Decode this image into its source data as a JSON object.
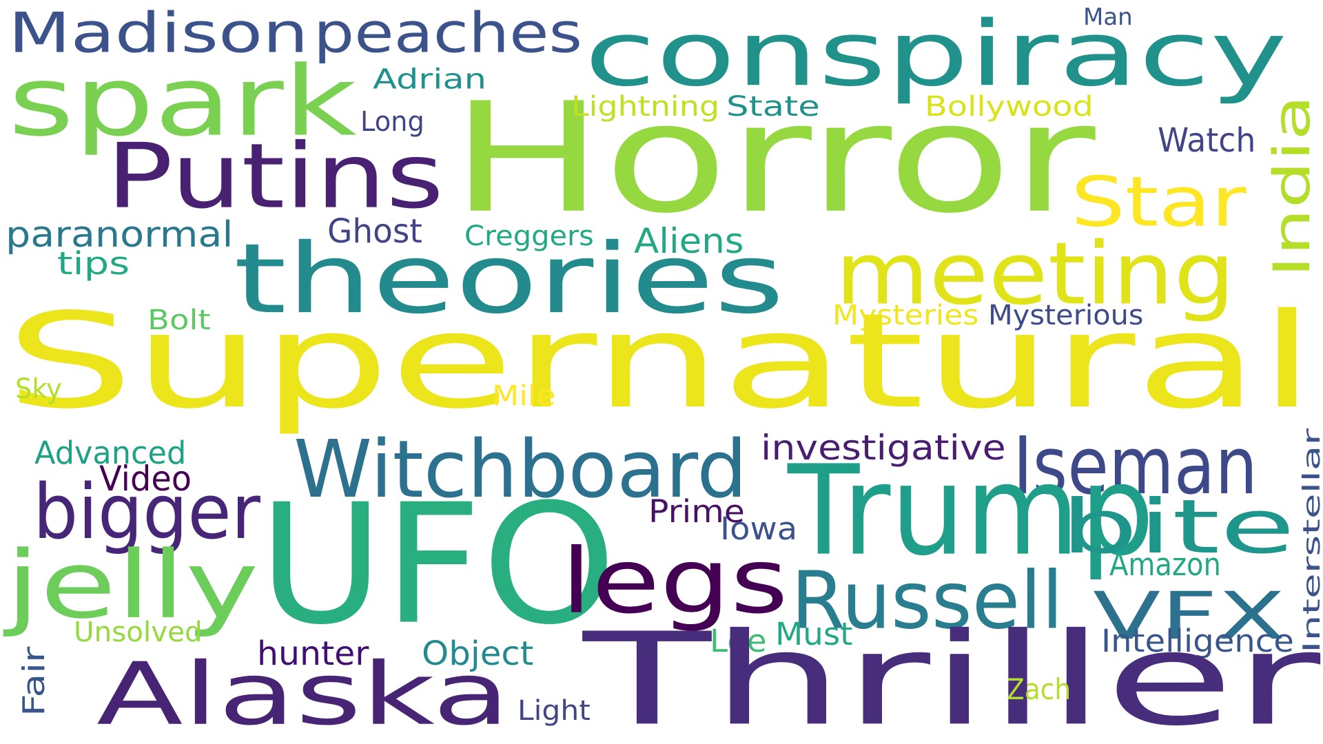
{
  "words": [
    {
      "text": "Madison",
      "color": "#3b528b",
      "rot": 0
    },
    {
      "text": "peaches",
      "color": "#3b528b",
      "rot": 0
    },
    {
      "text": "conspiracy",
      "color": "#21918c",
      "rot": 0
    },
    {
      "text": "Man",
      "color": "#3b528b",
      "rot": 0
    },
    {
      "text": "spark",
      "color": "#7ad151",
      "rot": 0
    },
    {
      "text": "Adrian",
      "color": "#21918c",
      "rot": 0
    },
    {
      "text": "Horror",
      "color": "#95d840",
      "rot": 0
    },
    {
      "text": "Lightning",
      "color": "#c2df23",
      "rot": 0
    },
    {
      "text": "State",
      "color": "#21918c",
      "rot": 0
    },
    {
      "text": "Bollywood",
      "color": "#dae319",
      "rot": 0
    },
    {
      "text": "Long",
      "color": "#414487",
      "rot": 0
    },
    {
      "text": "India",
      "color": "#b5de2b",
      "rot": 90
    },
    {
      "text": "Putins",
      "color": "#482173",
      "rot": 0
    },
    {
      "text": "Watch",
      "color": "#414487",
      "rot": 0
    },
    {
      "text": "Star",
      "color": "#fde725",
      "rot": 0
    },
    {
      "text": "theories",
      "color": "#238a8d",
      "rot": 0
    },
    {
      "text": "meeting",
      "color": "#dfe318",
      "rot": 0
    },
    {
      "text": "paranormal",
      "color": "#2a788e",
      "rot": 0
    },
    {
      "text": "Ghost",
      "color": "#414487",
      "rot": 0
    },
    {
      "text": "Creggers",
      "color": "#22a884",
      "rot": 0
    },
    {
      "text": "Aliens",
      "color": "#22a884",
      "rot": 0
    },
    {
      "text": "tips",
      "color": "#22a884",
      "rot": 0
    },
    {
      "text": "Supernatural",
      "color": "#ece51b",
      "rot": 0
    },
    {
      "text": "Mysteries",
      "color": "#f1e51d",
      "rot": 0
    },
    {
      "text": "Mysterious",
      "color": "#3e4a89",
      "rot": 0
    },
    {
      "text": "Bolt",
      "color": "#5ec962",
      "rot": 0
    },
    {
      "text": "Sky",
      "color": "#b5de2b",
      "rot": 0
    },
    {
      "text": "Mile",
      "color": "#fde725",
      "rot": 0
    },
    {
      "text": "Witchboard",
      "color": "#2c728e",
      "rot": 0
    },
    {
      "text": "investigative",
      "color": "#481f70",
      "rot": 0
    },
    {
      "text": "Iseman",
      "color": "#3e4989",
      "rot": 0
    },
    {
      "text": "Interstellar",
      "color": "#3b528b",
      "rot": 90
    },
    {
      "text": "Advanced",
      "color": "#1fa187",
      "rot": 0
    },
    {
      "text": "Video",
      "color": "#440154",
      "rot": 0
    },
    {
      "text": "bigger",
      "color": "#482677",
      "rot": 0
    },
    {
      "text": "UFO",
      "color": "#29af7f",
      "rot": 0
    },
    {
      "text": "Trump",
      "color": "#1f9e89",
      "rot": 0
    },
    {
      "text": "bite",
      "color": "#1f968b",
      "rot": 0
    },
    {
      "text": "Prime",
      "color": "#471164",
      "rot": 0
    },
    {
      "text": "Iowa",
      "color": "#3b528b",
      "rot": 0
    },
    {
      "text": "jelly",
      "color": "#6ccd5a",
      "rot": 0
    },
    {
      "text": "legs",
      "color": "#440154",
      "rot": 0
    },
    {
      "text": "Russell",
      "color": "#287d8e",
      "rot": 0
    },
    {
      "text": "Amazon",
      "color": "#22a884",
      "rot": 0
    },
    {
      "text": "VFX",
      "color": "#2c728e",
      "rot": 0
    },
    {
      "text": "Unsolved",
      "color": "#95d840",
      "rot": 0
    },
    {
      "text": "Must",
      "color": "#22a884",
      "rot": 0
    },
    {
      "text": "Lee",
      "color": "#3dbc74",
      "rot": 0
    },
    {
      "text": "Intelligence",
      "color": "#39568c",
      "rot": 0
    },
    {
      "text": "hunter",
      "color": "#3f0f72",
      "rot": 0
    },
    {
      "text": "Object",
      "color": "#238a8d",
      "rot": 0
    },
    {
      "text": "Fair",
      "color": "#39568c",
      "rot": 90
    },
    {
      "text": "Alaska",
      "color": "#482475",
      "rot": 0
    },
    {
      "text": "Thriller",
      "color": "#472d7b",
      "rot": 0
    },
    {
      "text": "Zach",
      "color": "#b5de2b",
      "rot": 0
    },
    {
      "text": "Light",
      "color": "#414487",
      "rot": 0
    }
  ]
}
